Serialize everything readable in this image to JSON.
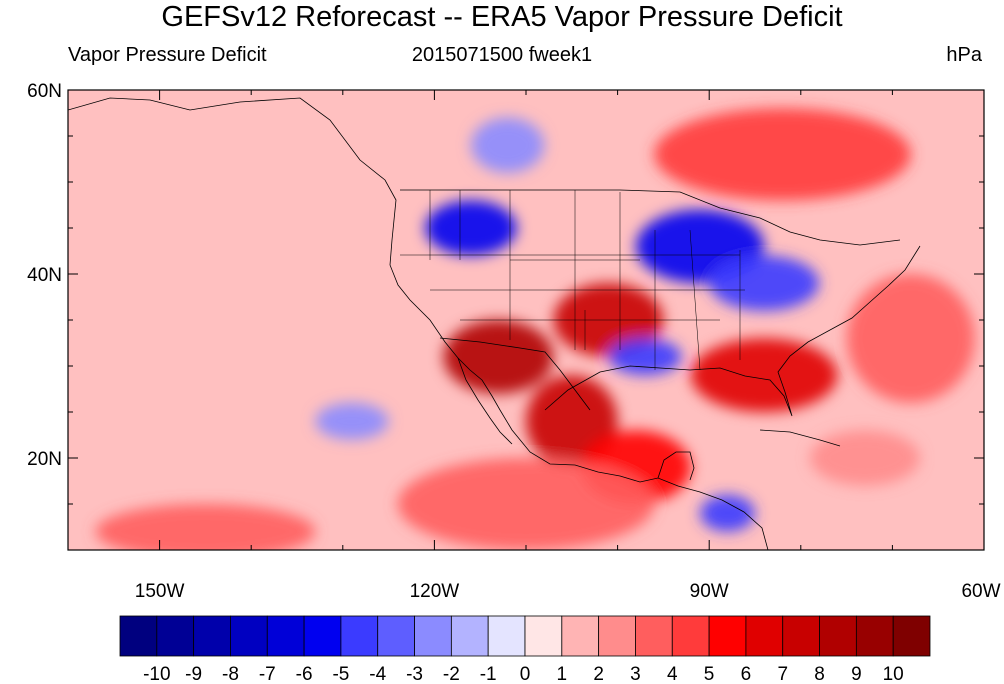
{
  "title": "GEFSv12 Reforecast -- ERA5 Vapor Pressure Deficit",
  "subtitle_left": "Vapor Pressure Deficit",
  "subtitle_center": "2015071500 fweek1",
  "subtitle_right": "hPa",
  "map": {
    "lon_range": [
      -160,
      -60
    ],
    "lat_range": [
      10,
      60
    ],
    "x_tick_labels": [
      {
        "lon": -150,
        "label": "150W"
      },
      {
        "lon": -120,
        "label": "120W"
      },
      {
        "lon": -90,
        "label": "90W"
      },
      {
        "lon": -60,
        "label": "60W"
      }
    ],
    "y_tick_labels": [
      {
        "lat": 60,
        "label": "60N"
      },
      {
        "lat": 40,
        "label": "40N"
      },
      {
        "lat": 20,
        "label": "20N"
      }
    ]
  },
  "colorbar": {
    "levels": [
      "-10",
      "-9",
      "-8",
      "-7",
      "-6",
      "-5",
      "-4",
      "-3",
      "-2",
      "-1",
      "0",
      "1",
      "2",
      "3",
      "4",
      "5",
      "6",
      "7",
      "8",
      "9",
      "10"
    ],
    "colors": [
      "#00007f",
      "#000095",
      "#0000ab",
      "#0000c1",
      "#0000d8",
      "#0000f0",
      "#3b3bff",
      "#5e5eff",
      "#8b8bff",
      "#b3b3ff",
      "#e4e4ff",
      "#ffe6e6",
      "#ffb4b4",
      "#ff8c8c",
      "#ff5e5e",
      "#ff3b3b",
      "#ff0000",
      "#e00000",
      "#c80000",
      "#b00000",
      "#980000",
      "#7f0000"
    ]
  },
  "field_anomalies": [
    {
      "name": "west-coast-dry",
      "lon": -113,
      "lat": 31,
      "rx": 6,
      "ry": 4,
      "level": 8
    },
    {
      "name": "mexico-plateau-dry",
      "lon": -105,
      "lat": 24,
      "rx": 5,
      "ry": 5,
      "level": 7
    },
    {
      "name": "southern-plains-dry",
      "lon": -101,
      "lat": 35,
      "rx": 6,
      "ry": 4,
      "level": 7
    },
    {
      "name": "southeast-dry",
      "lon": -84,
      "lat": 29,
      "rx": 8,
      "ry": 4,
      "level": 6
    },
    {
      "name": "mexico-south-dry",
      "lon": -98,
      "lat": 19,
      "rx": 6,
      "ry": 4,
      "level": 5
    },
    {
      "name": "canada-dry",
      "lon": -82,
      "lat": 53,
      "rx": 14,
      "ry": 5,
      "level": 4
    },
    {
      "name": "atlantic-dry",
      "lon": -68,
      "lat": 33,
      "rx": 7,
      "ry": 7,
      "level": 3
    },
    {
      "name": "caribbean-dry",
      "lon": -73,
      "lat": 20,
      "rx": 6,
      "ry": 3,
      "level": 2
    },
    {
      "name": "east-pacific-dry",
      "lon": -110,
      "lat": 15,
      "rx": 14,
      "ry": 5,
      "level": 3
    },
    {
      "name": "pacific-south-dry",
      "lon": -145,
      "lat": 12,
      "rx": 12,
      "ry": 3,
      "level": 3
    },
    {
      "name": "northwest-wet",
      "lon": -116,
      "lat": 45,
      "rx": 5,
      "ry": 3,
      "level": -6
    },
    {
      "name": "midwest-wet",
      "lon": -91,
      "lat": 43,
      "rx": 7,
      "ry": 4,
      "level": -6
    },
    {
      "name": "ohio-valley-wet",
      "lon": -84,
      "lat": 39,
      "rx": 6,
      "ry": 3,
      "level": -5
    },
    {
      "name": "texas-wet",
      "lon": -97,
      "lat": 31,
      "rx": 4,
      "ry": 2,
      "level": -5
    },
    {
      "name": "pacific-wet",
      "lon": -129,
      "lat": 24,
      "rx": 4,
      "ry": 2,
      "level": -3
    },
    {
      "name": "canada-wet",
      "lon": -112,
      "lat": 54,
      "rx": 4,
      "ry": 3,
      "level": -3
    },
    {
      "name": "central-america-wet",
      "lon": -88,
      "lat": 14,
      "rx": 3,
      "ry": 2,
      "level": -5
    }
  ]
}
